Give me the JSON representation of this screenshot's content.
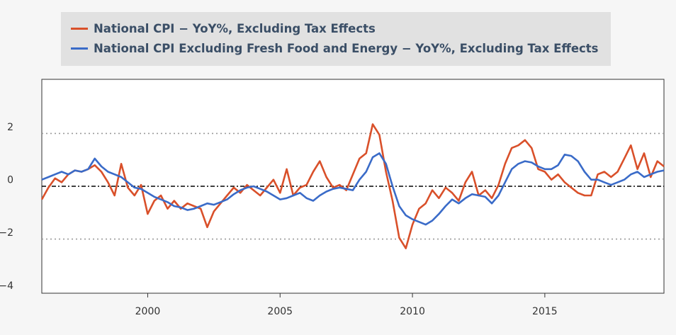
{
  "chart_data": {
    "type": "line",
    "title": "",
    "xlabel": "",
    "ylabel": "",
    "xlim": [
      1996,
      2019.5
    ],
    "ylim": [
      -4.3,
      3.8
    ],
    "x_ticks": [
      2000,
      2005,
      2010,
      2015
    ],
    "x_tick_labels": [
      "2000",
      "2005",
      "2010",
      "2015"
    ],
    "y_ticks": [
      2,
      0,
      -2,
      -4
    ],
    "y_tick_labels": [
      "2",
      "0",
      "−2",
      "−4"
    ],
    "reference_lines": {
      "mean": -0.25,
      "upper": 1.75,
      "lower": -2.25
    },
    "legend_position": "top",
    "colors": {
      "national_cpi": "#d9502a",
      "core_cpi": "#3a6bc8",
      "mean_line": "#000000",
      "band_line": "#9a9a9a"
    },
    "series": [
      {
        "name": "National CPI − YoY%, Excluding Tax Effects",
        "color": "#d9502a",
        "points": [
          [
            1996.0,
            -0.75
          ],
          [
            1996.25,
            -0.3
          ],
          [
            1996.5,
            0.05
          ],
          [
            1996.75,
            -0.1
          ],
          [
            1997.0,
            0.2
          ],
          [
            1997.25,
            0.35
          ],
          [
            1997.5,
            0.3
          ],
          [
            1997.75,
            0.4
          ],
          [
            1998.0,
            0.55
          ],
          [
            1998.25,
            0.3
          ],
          [
            1998.5,
            -0.1
          ],
          [
            1998.75,
            -0.6
          ],
          [
            1999.0,
            0.6
          ],
          [
            1999.25,
            -0.3
          ],
          [
            1999.5,
            -0.6
          ],
          [
            1999.75,
            -0.2
          ],
          [
            2000.0,
            -1.3
          ],
          [
            2000.25,
            -0.8
          ],
          [
            2000.5,
            -0.6
          ],
          [
            2000.75,
            -1.1
          ],
          [
            2001.0,
            -0.8
          ],
          [
            2001.25,
            -1.1
          ],
          [
            2001.5,
            -0.9
          ],
          [
            2001.75,
            -1.0
          ],
          [
            2002.0,
            -1.1
          ],
          [
            2002.25,
            -1.8
          ],
          [
            2002.5,
            -1.2
          ],
          [
            2002.75,
            -0.9
          ],
          [
            2003.0,
            -0.6
          ],
          [
            2003.25,
            -0.3
          ],
          [
            2003.5,
            -0.5
          ],
          [
            2003.75,
            -0.2
          ],
          [
            2004.0,
            -0.4
          ],
          [
            2004.25,
            -0.6
          ],
          [
            2004.5,
            -0.3
          ],
          [
            2004.75,
            0.0
          ],
          [
            2005.0,
            -0.5
          ],
          [
            2005.25,
            0.4
          ],
          [
            2005.5,
            -0.6
          ],
          [
            2005.75,
            -0.3
          ],
          [
            2006.0,
            -0.2
          ],
          [
            2006.25,
            0.3
          ],
          [
            2006.5,
            0.7
          ],
          [
            2006.75,
            0.1
          ],
          [
            2007.0,
            -0.3
          ],
          [
            2007.25,
            -0.2
          ],
          [
            2007.5,
            -0.4
          ],
          [
            2007.75,
            0.2
          ],
          [
            2008.0,
            0.8
          ],
          [
            2008.25,
            1.0
          ],
          [
            2008.5,
            2.1
          ],
          [
            2008.75,
            1.7
          ],
          [
            2009.0,
            0.3
          ],
          [
            2009.25,
            -0.8
          ],
          [
            2009.5,
            -2.2
          ],
          [
            2009.75,
            -2.6
          ],
          [
            2010.0,
            -1.7
          ],
          [
            2010.25,
            -1.1
          ],
          [
            2010.5,
            -0.9
          ],
          [
            2010.75,
            -0.4
          ],
          [
            2011.0,
            -0.7
          ],
          [
            2011.25,
            -0.3
          ],
          [
            2011.5,
            -0.5
          ],
          [
            2011.75,
            -0.8
          ],
          [
            2012.0,
            -0.1
          ],
          [
            2012.25,
            0.3
          ],
          [
            2012.5,
            -0.6
          ],
          [
            2012.75,
            -0.4
          ],
          [
            2013.0,
            -0.7
          ],
          [
            2013.25,
            -0.2
          ],
          [
            2013.5,
            0.6
          ],
          [
            2013.75,
            1.2
          ],
          [
            2014.0,
            1.3
          ],
          [
            2014.25,
            1.5
          ],
          [
            2014.5,
            1.2
          ],
          [
            2014.75,
            0.4
          ],
          [
            2015.0,
            0.3
          ],
          [
            2015.25,
            0.0
          ],
          [
            2015.5,
            0.2
          ],
          [
            2015.75,
            -0.1
          ],
          [
            2016.0,
            -0.3
          ],
          [
            2016.25,
            -0.5
          ],
          [
            2016.5,
            -0.6
          ],
          [
            2016.75,
            -0.6
          ],
          [
            2017.0,
            0.2
          ],
          [
            2017.25,
            0.3
          ],
          [
            2017.5,
            0.1
          ],
          [
            2017.75,
            0.3
          ],
          [
            2018.0,
            0.8
          ],
          [
            2018.25,
            1.3
          ],
          [
            2018.5,
            0.4
          ],
          [
            2018.75,
            1.0
          ],
          [
            2019.0,
            0.1
          ],
          [
            2019.25,
            0.7
          ],
          [
            2019.5,
            0.5
          ]
        ]
      },
      {
        "name": "National CPI Excluding Fresh Food and Energy − YoY%, Excluding Tax Effects",
        "color": "#3a6bc8",
        "points": [
          [
            1996.0,
            0.0
          ],
          [
            1996.25,
            0.1
          ],
          [
            1996.5,
            0.2
          ],
          [
            1996.75,
            0.3
          ],
          [
            1997.0,
            0.2
          ],
          [
            1997.25,
            0.35
          ],
          [
            1997.5,
            0.3
          ],
          [
            1997.75,
            0.4
          ],
          [
            1998.0,
            0.8
          ],
          [
            1998.25,
            0.5
          ],
          [
            1998.5,
            0.3
          ],
          [
            1998.75,
            0.2
          ],
          [
            1999.0,
            0.1
          ],
          [
            1999.25,
            -0.1
          ],
          [
            1999.5,
            -0.3
          ],
          [
            1999.75,
            -0.35
          ],
          [
            2000.0,
            -0.5
          ],
          [
            2000.25,
            -0.65
          ],
          [
            2000.5,
            -0.75
          ],
          [
            2000.75,
            -0.85
          ],
          [
            2001.0,
            -1.0
          ],
          [
            2001.25,
            -1.05
          ],
          [
            2001.5,
            -1.15
          ],
          [
            2001.75,
            -1.1
          ],
          [
            2002.0,
            -1.0
          ],
          [
            2002.25,
            -0.9
          ],
          [
            2002.5,
            -0.95
          ],
          [
            2002.75,
            -0.85
          ],
          [
            2003.0,
            -0.75
          ],
          [
            2003.25,
            -0.55
          ],
          [
            2003.5,
            -0.4
          ],
          [
            2003.75,
            -0.3
          ],
          [
            2004.0,
            -0.25
          ],
          [
            2004.25,
            -0.35
          ],
          [
            2004.5,
            -0.45
          ],
          [
            2004.75,
            -0.6
          ],
          [
            2005.0,
            -0.75
          ],
          [
            2005.25,
            -0.7
          ],
          [
            2005.5,
            -0.6
          ],
          [
            2005.75,
            -0.5
          ],
          [
            2006.0,
            -0.7
          ],
          [
            2006.25,
            -0.8
          ],
          [
            2006.5,
            -0.6
          ],
          [
            2006.75,
            -0.45
          ],
          [
            2007.0,
            -0.35
          ],
          [
            2007.25,
            -0.3
          ],
          [
            2007.5,
            -0.35
          ],
          [
            2007.75,
            -0.4
          ],
          [
            2008.0,
            0.0
          ],
          [
            2008.25,
            0.3
          ],
          [
            2008.5,
            0.85
          ],
          [
            2008.75,
            1.0
          ],
          [
            2009.0,
            0.6
          ],
          [
            2009.25,
            -0.25
          ],
          [
            2009.5,
            -1.0
          ],
          [
            2009.75,
            -1.35
          ],
          [
            2010.0,
            -1.5
          ],
          [
            2010.25,
            -1.6
          ],
          [
            2010.5,
            -1.7
          ],
          [
            2010.75,
            -1.55
          ],
          [
            2011.0,
            -1.3
          ],
          [
            2011.25,
            -1.0
          ],
          [
            2011.5,
            -0.75
          ],
          [
            2011.75,
            -0.9
          ],
          [
            2012.0,
            -0.7
          ],
          [
            2012.25,
            -0.55
          ],
          [
            2012.5,
            -0.6
          ],
          [
            2012.75,
            -0.65
          ],
          [
            2013.0,
            -0.9
          ],
          [
            2013.25,
            -0.6
          ],
          [
            2013.5,
            -0.1
          ],
          [
            2013.75,
            0.4
          ],
          [
            2014.0,
            0.6
          ],
          [
            2014.25,
            0.7
          ],
          [
            2014.5,
            0.65
          ],
          [
            2014.75,
            0.5
          ],
          [
            2015.0,
            0.4
          ],
          [
            2015.25,
            0.4
          ],
          [
            2015.5,
            0.55
          ],
          [
            2015.75,
            0.95
          ],
          [
            2016.0,
            0.9
          ],
          [
            2016.25,
            0.7
          ],
          [
            2016.5,
            0.3
          ],
          [
            2016.75,
            0.0
          ],
          [
            2017.0,
            0.0
          ],
          [
            2017.25,
            -0.1
          ],
          [
            2017.5,
            -0.2
          ],
          [
            2017.75,
            -0.1
          ],
          [
            2018.0,
            0.0
          ],
          [
            2018.25,
            0.2
          ],
          [
            2018.5,
            0.3
          ],
          [
            2018.75,
            0.1
          ],
          [
            2019.0,
            0.2
          ],
          [
            2019.25,
            0.3
          ],
          [
            2019.5,
            0.35
          ]
        ]
      }
    ]
  }
}
